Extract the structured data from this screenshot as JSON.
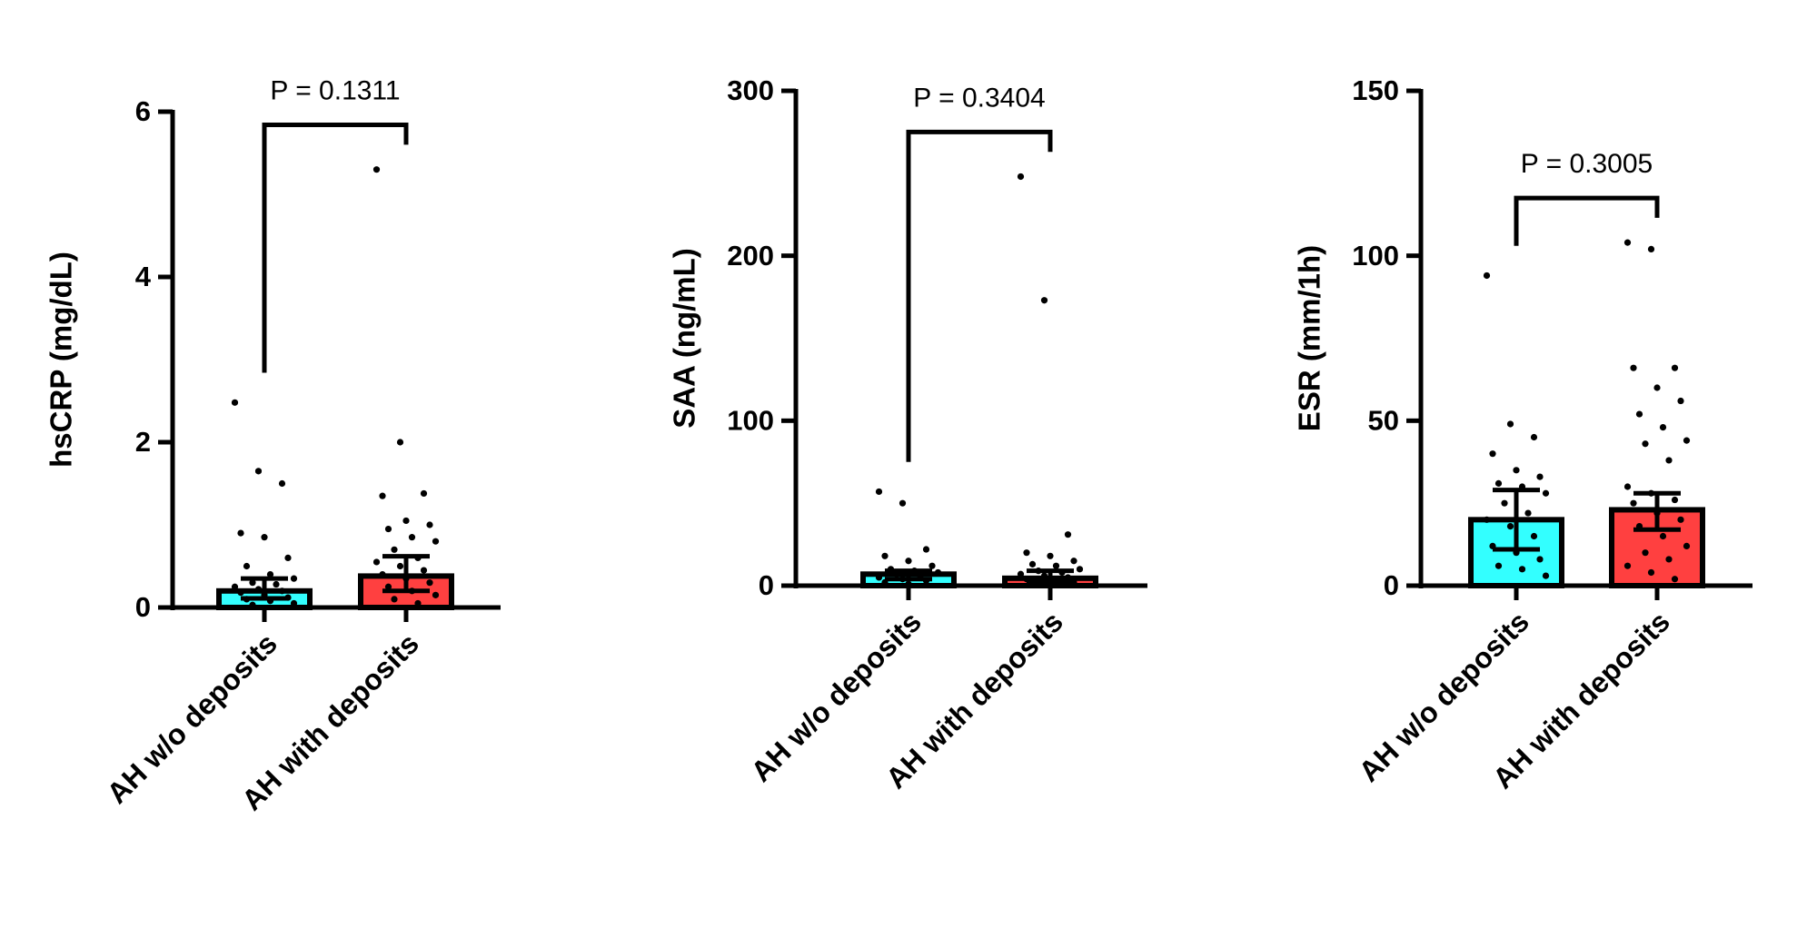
{
  "chart_data": [
    {
      "type": "bar",
      "ylabel": "hsCRP (mg/dL)",
      "annotation": "P = 0.1311",
      "categories": [
        "AH w/o deposits",
        "AH with deposits"
      ],
      "colors": [
        "#33ffff",
        "#ff4040"
      ],
      "values": [
        0.2,
        0.38
      ],
      "error_low": [
        0.11,
        0.2
      ],
      "error_high": [
        0.35,
        0.62
      ],
      "points": [
        [
          2.48,
          1.65,
          1.5,
          0.9,
          0.85,
          0.6,
          0.5,
          0.4,
          0.35,
          0.3,
          0.28,
          0.25,
          0.22,
          0.2,
          0.18,
          0.15,
          0.12,
          0.1,
          0.08,
          0.05,
          0.03
        ],
        [
          5.3,
          2.0,
          1.38,
          1.35,
          1.05,
          1.0,
          0.95,
          0.85,
          0.8,
          0.7,
          0.6,
          0.55,
          0.5,
          0.45,
          0.4,
          0.35,
          0.3,
          0.25,
          0.2,
          0.15,
          0.1,
          0.05
        ]
      ],
      "ylim": [
        0,
        6
      ],
      "yticks": [
        0,
        2,
        4,
        6
      ]
    },
    {
      "type": "bar",
      "ylabel": "SAA (ng/mL)",
      "annotation": "P = 0.3404",
      "categories": [
        "AH w/o deposits",
        "AH with deposits"
      ],
      "colors": [
        "#33ffff",
        "#ff4040"
      ],
      "values": [
        7,
        4.5
      ],
      "error_low": [
        4,
        3
      ],
      "error_high": [
        9,
        9
      ],
      "points": [
        [
          57,
          50,
          22,
          18,
          15,
          12,
          10,
          9,
          8,
          7,
          6,
          5,
          4,
          3,
          2,
          1
        ],
        [
          248,
          173,
          31,
          20,
          18,
          15,
          13,
          12,
          10,
          9,
          8,
          7,
          6,
          5,
          4,
          3,
          2,
          1
        ]
      ],
      "ylim": [
        0,
        300
      ],
      "yticks": [
        0,
        100,
        200,
        300
      ]
    },
    {
      "type": "bar",
      "ylabel": "ESR (mm/1h)",
      "annotation": "P = 0.3005",
      "categories": [
        "AH w/o deposits",
        "AH with deposits"
      ],
      "colors": [
        "#33ffff",
        "#ff4040"
      ],
      "values": [
        20,
        23
      ],
      "error_low": [
        11,
        17
      ],
      "error_high": [
        29,
        28
      ],
      "points": [
        [
          94,
          49,
          45,
          40,
          35,
          33,
          31,
          30,
          28,
          25,
          22,
          20,
          18,
          15,
          12,
          10,
          8,
          6,
          5,
          3
        ],
        [
          104,
          102,
          66,
          66,
          60,
          56,
          52,
          48,
          44,
          43,
          38,
          30,
          28,
          26,
          25,
          22,
          20,
          18,
          15,
          12,
          10,
          8,
          6,
          4,
          2
        ]
      ],
      "ylim": [
        0,
        150
      ],
      "yticks": [
        0,
        50,
        100,
        150
      ]
    }
  ]
}
